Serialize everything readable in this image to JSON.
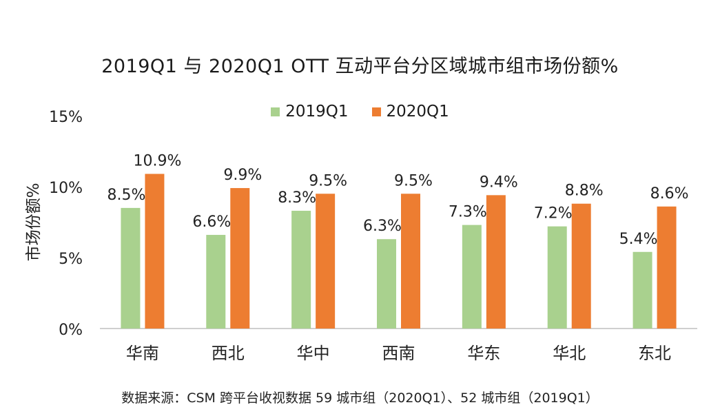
{
  "chart_data": {
    "type": "bar",
    "title": "2019Q1 与 2020Q1  OTT 互动平台分区域城市组市场份额%",
    "ylabel": "市场份额%",
    "xlabel": "",
    "categories": [
      "华南",
      "西北",
      "华中",
      "西南",
      "华东",
      "华北",
      "东北"
    ],
    "series": [
      {
        "name": "2019Q1",
        "color": "#a9d18e",
        "values": [
          8.5,
          6.6,
          8.3,
          6.3,
          7.3,
          7.2,
          5.4
        ],
        "labels": [
          "8.5%",
          "6.6%",
          "8.3%",
          "6.3%",
          "7.3%",
          "7.2%",
          "5.4%"
        ]
      },
      {
        "name": "2020Q1",
        "color": "#ed7d31",
        "values": [
          10.9,
          9.9,
          9.5,
          9.5,
          9.4,
          8.8,
          8.6
        ],
        "labels": [
          "10.9%",
          "9.9%",
          "9.5%",
          "9.5%",
          "9.4%",
          "8.8%",
          "8.6%"
        ]
      }
    ],
    "ylim": [
      0,
      15
    ],
    "yticks": [
      0,
      5,
      10,
      15
    ],
    "ytick_labels": [
      "0%",
      "5%",
      "10%",
      "15%"
    ],
    "grid": false,
    "legend_position": "top-center",
    "source": "数据来源：CSM 跨平台收视数据 59 城市组（2020Q1）、52 城市组（2019Q1）"
  }
}
